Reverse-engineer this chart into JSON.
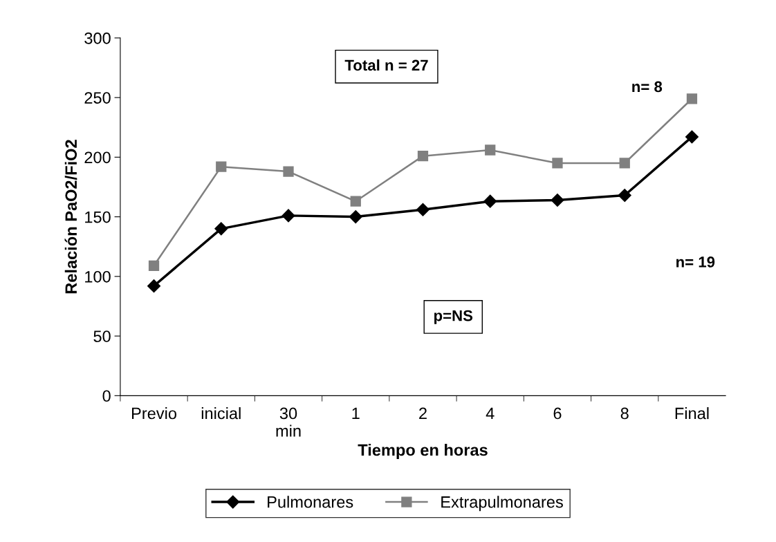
{
  "chart_data": {
    "type": "line",
    "xlabel": "Tiempo en horas",
    "ylabel": "Relación PaO2/FiO2",
    "categories": [
      "Previo",
      "inicial",
      "30\nmin",
      "1",
      "2",
      "4",
      "6",
      "8",
      "Final"
    ],
    "series": [
      {
        "name": "Pulmonares",
        "color": "#000000",
        "marker": "diamond",
        "values": [
          92,
          140,
          151,
          150,
          156,
          163,
          164,
          168,
          217
        ]
      },
      {
        "name": "Extrapulmonares",
        "color": "#808080",
        "marker": "square",
        "values": [
          109,
          192,
          188,
          163,
          201,
          206,
          195,
          195,
          249
        ]
      }
    ],
    "ylim": [
      0,
      300
    ],
    "yticks": [
      0,
      50,
      100,
      150,
      200,
      250,
      300
    ],
    "grid": false,
    "legend": "bottom",
    "line_style": "solid",
    "annotations": [
      "Total n = 27",
      "n= 8",
      "n= 19",
      "p=NS"
    ]
  }
}
